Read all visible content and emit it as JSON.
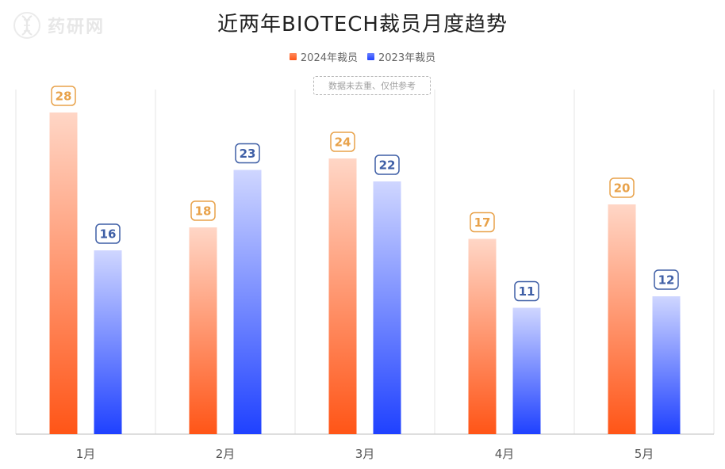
{
  "watermark": {
    "text": "药研网",
    "icon": "dna-helix-icon"
  },
  "chart_data": {
    "type": "bar",
    "title": "近两年BIOTECH裁员月度趋势",
    "categories": [
      "1月",
      "2月",
      "3月",
      "4月",
      "5月"
    ],
    "series": [
      {
        "name": "2024年裁员",
        "values": [
          28,
          18,
          24,
          17,
          20
        ],
        "color_top": "#ffd6c6",
        "color_bottom": "#ff5517",
        "label_color": "#e8a24a"
      },
      {
        "name": "2023年裁员",
        "values": [
          16,
          23,
          22,
          11,
          12
        ],
        "color_top": "#cfd6ff",
        "color_bottom": "#1f41ff",
        "label_color": "#3f5fa6"
      }
    ],
    "ylim": [
      0,
      30
    ],
    "grid": "vertical",
    "legend_position": "top-center",
    "annotation": "数据未去重、仅供参考"
  }
}
